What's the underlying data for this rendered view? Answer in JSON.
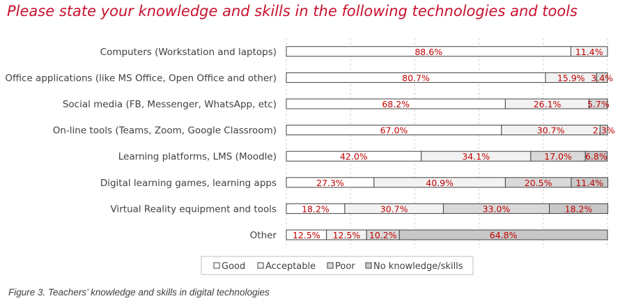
{
  "colors": {
    "title": "#c8102e",
    "value_label": "#c00000",
    "series": [
      "#ffffff",
      "#f2f2f2",
      "#d9d9d9",
      "#c8c8c8"
    ],
    "bar_border": "#404040"
  },
  "caption": "Figure 3. Teachers’ knowledge and skills in digital technologies",
  "chart_data": {
    "type": "bar",
    "orientation": "horizontal",
    "stacked": "percent",
    "title": "Please state your knowledge and skills in the following technologies and tools",
    "xlim": [
      0,
      100
    ],
    "grid": true,
    "legend_position": "bottom",
    "categories": [
      "Computers (Workstation and laptops)",
      "Office applications (like MS Office, Open Office and other)",
      "Social media (FB, Messenger, WhatsApp, etc)",
      "On-line tools (Teams, Zoom, Google Classroom)",
      "Learning platforms, LMS (Moodle)",
      "Digital learning games, learning apps",
      "Virtual Reality equipment and tools",
      "Other"
    ],
    "series": [
      {
        "name": "Good",
        "values": [
          88.6,
          80.7,
          68.2,
          67.0,
          42.0,
          27.3,
          18.2,
          12.5
        ],
        "labels": [
          "88.6%",
          "80.7%",
          "68.2%",
          "67.0%",
          "42.0%",
          "27.3%",
          "18.2%",
          "12.5%"
        ]
      },
      {
        "name": "Acceptable",
        "values": [
          11.4,
          15.9,
          26.1,
          30.7,
          34.1,
          40.9,
          30.7,
          12.5
        ],
        "labels": [
          "11.4%",
          "15.9%",
          "26.1%",
          "30.7%",
          "34.1%",
          "40.9%",
          "30.7%",
          "12.5%"
        ]
      },
      {
        "name": "Poor",
        "values": [
          0,
          3.4,
          5.7,
          2.3,
          17.0,
          20.5,
          33.0,
          10.2
        ],
        "labels": [
          "",
          "3.4%",
          "5.7%",
          "2.3%",
          "17.0%",
          "20.5%",
          "33.0%",
          "10.2%"
        ]
      },
      {
        "name": "No knowledge/skills",
        "values": [
          0,
          0,
          0,
          0,
          6.8,
          11.4,
          18.2,
          64.8
        ],
        "labels": [
          "",
          "",
          "",
          "",
          "6.8%",
          "11.4%",
          "18.2%",
          "64.8%"
        ]
      }
    ]
  }
}
